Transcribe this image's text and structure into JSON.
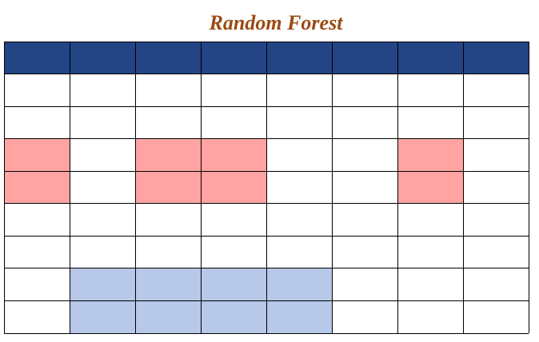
{
  "title": "Random Forest",
  "colors": {
    "title": "#9c4a14",
    "header": "#234485",
    "grid_line": "#000000",
    "row_sample": "#ffa3a3",
    "feature_sample": "#b7c8e8",
    "cell": "#ffffff"
  },
  "table": {
    "columns": 8,
    "rows": 8,
    "header_rows": 1
  },
  "highlights": {
    "sampled_rows": [
      3,
      4
    ],
    "sampled_row_columns": [
      1,
      3,
      4,
      7
    ],
    "sampled_feature_rows": [
      7,
      8
    ],
    "sampled_feature_columns": [
      2,
      3,
      4,
      5
    ]
  }
}
